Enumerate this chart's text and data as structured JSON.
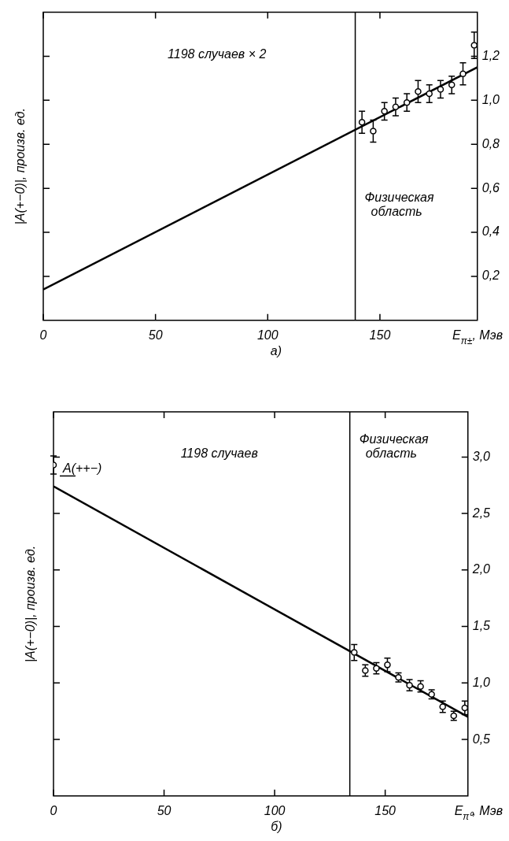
{
  "chart_data": [
    {
      "type": "scatter",
      "xlabel": "E$_{π±}$, Мэв",
      "ylabel": "|A(+−0)|, произв. ед.",
      "xlim": [
        0,
        193.4
      ],
      "xticks": [
        0,
        50,
        100,
        150
      ],
      "ylim": [
        0,
        1.4
      ],
      "yticks": [
        {
          "value": 0.2,
          "label": "0,2"
        },
        {
          "value": 0.4,
          "label": "0,4"
        },
        {
          "value": 0.6,
          "label": "0,6"
        },
        {
          "value": 0.8,
          "label": "0,8"
        },
        {
          "value": 1.0,
          "label": "1,0"
        },
        {
          "value": 1.2,
          "label": "1,2"
        }
      ],
      "grid": false,
      "legend": false,
      "series": [
        {
          "marker": "circle",
          "color": "#000000",
          "x": [
            142,
            147,
            152,
            157,
            162,
            167,
            172,
            177,
            182,
            187,
            192
          ],
          "values": [
            0.9,
            0.86,
            0.95,
            0.97,
            0.99,
            1.04,
            1.03,
            1.05,
            1.07,
            1.12,
            1.25
          ],
          "errors": [
            0.05,
            0.05,
            0.04,
            0.04,
            0.04,
            0.05,
            0.04,
            0.04,
            0.04,
            0.05,
            0.06
          ]
        },
        {
          "type": "line",
          "color": "#000000",
          "x": [
            0,
            193.4
          ],
          "values": [
            0.14,
            1.15
          ]
        }
      ],
      "ref_lines": [
        {
          "axis": "x",
          "value": 139,
          "color": "#000000"
        }
      ],
      "annotations": [
        "1198 случаев × 2",
        "Физическая область",
        "а)"
      ]
    },
    {
      "type": "scatter",
      "xlabel": "E$_{π⁰}$, Мэв",
      "ylabel": "|A(+−0)|, произв. ед.",
      "xlim": [
        0,
        187.4
      ],
      "xticks": [
        0,
        50,
        100,
        150
      ],
      "ylim": [
        0,
        3.4
      ],
      "yticks": [
        {
          "value": 0.5,
          "label": "0,5"
        },
        {
          "value": 1.0,
          "label": "1,0"
        },
        {
          "value": 1.5,
          "label": "1,5"
        },
        {
          "value": 2.0,
          "label": "2,0"
        },
        {
          "value": 2.5,
          "label": "2,5"
        },
        {
          "value": 3.0,
          "label": "3,0"
        }
      ],
      "grid": false,
      "legend": false,
      "series": [
        {
          "marker": "circle",
          "color": "#000000",
          "x": [
            0,
            136,
            141,
            146,
            151,
            156,
            161,
            166,
            171,
            176,
            181,
            186
          ],
          "values": [
            2.93,
            1.27,
            1.11,
            1.13,
            1.16,
            1.05,
            0.98,
            0.97,
            0.9,
            0.79,
            0.71,
            0.78
          ],
          "errors": [
            0.08,
            0.07,
            0.05,
            0.05,
            0.06,
            0.04,
            0.05,
            0.05,
            0.04,
            0.05,
            0.04,
            0.06
          ]
        },
        {
          "type": "line",
          "color": "#000000",
          "x": [
            0,
            187.4
          ],
          "values": [
            2.74,
            0.7
          ]
        }
      ],
      "ref_lines": [
        {
          "axis": "x",
          "value": 134,
          "color": "#000000"
        }
      ],
      "annotations": [
        "1198 случаев",
        "Физическая область",
        {
          "text": "A(++−)",
          "x": 0,
          "y": 2.93
        },
        "б)"
      ]
    }
  ]
}
